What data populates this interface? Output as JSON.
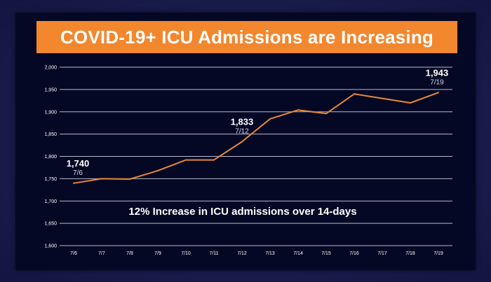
{
  "chart_data": {
    "type": "line",
    "title": "COVID-19+ ICU Admissions are Increasing",
    "caption": "12% Increase in ICU admissions over 14-days",
    "categories": [
      "7/6",
      "7/7",
      "7/8",
      "7/9",
      "7/10",
      "7/11",
      "7/12",
      "7/13",
      "7/14",
      "7/15",
      "7/16",
      "7/17",
      "7/18",
      "7/19"
    ],
    "series": [
      {
        "values": [
          1740,
          1750,
          1749,
          1768,
          1792,
          1792,
          1833,
          1884,
          1904,
          1896,
          1940,
          1930,
          1920,
          1943
        ],
        "color": "#e8883a"
      }
    ],
    "y_tick_labels": [
      "1,600",
      "1,650",
      "1,700",
      "1,750",
      "1,800",
      "1,850",
      "1,900",
      "1,950",
      "2,000"
    ],
    "ylim": [
      1600,
      2000
    ],
    "grid": true,
    "annotations": [
      {
        "index": 0,
        "value_label": "1,740",
        "date_label": "7/6"
      },
      {
        "index": 6,
        "value_label": "1,833",
        "date_label": "7/12"
      },
      {
        "index": 13,
        "value_label": "1,943",
        "date_label": "7/19"
      }
    ]
  },
  "colors": {
    "background": "#1b1d52",
    "panel": "#050824",
    "title_bar": "#f2872e",
    "line": "#e8883a",
    "grid": "#d8dae8",
    "text": "#ffffff"
  }
}
